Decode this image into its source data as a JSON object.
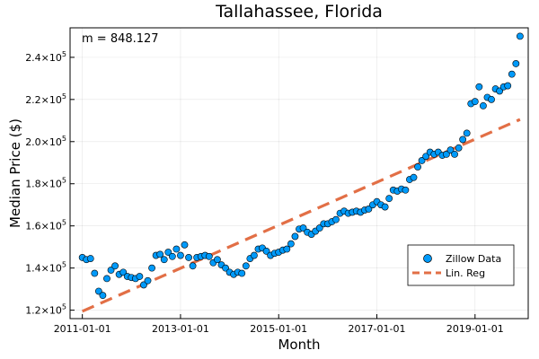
{
  "chart_data": {
    "type": "scatter",
    "title": "Tallahassee, Florida",
    "xlabel": "Month",
    "ylabel": "Median Price ($)",
    "annotation": "m = 848.127",
    "x_start": "2011-01-01",
    "x_tick_labels": [
      "2011-01-01",
      "2013-01-01",
      "2015-01-01",
      "2017-01-01",
      "2019-01-01"
    ],
    "x_tick_months": [
      0,
      24,
      48,
      72,
      96
    ],
    "xlim_months": [
      -3,
      109
    ],
    "ylim": [
      116000,
      254000
    ],
    "y_ticks": [
      120000,
      140000,
      160000,
      180000,
      200000,
      220000,
      240000
    ],
    "y_tick_mantissa": [
      "1.2",
      "1.4",
      "1.6",
      "1.8",
      "2.0",
      "2.2",
      "2.4"
    ],
    "y_tick_base": "×10",
    "y_tick_exp": "5",
    "grid": true,
    "legend": {
      "position": "bottom-right",
      "entries": [
        "Zillow Data",
        "Lin. Reg"
      ]
    },
    "series": [
      {
        "name": "Zillow Data",
        "kind": "scatter",
        "color": "#009AFA",
        "y": [
          145000,
          144000,
          144500,
          137500,
          129000,
          127000,
          135000,
          139000,
          141000,
          137000,
          138000,
          136000,
          135500,
          135000,
          136000,
          132000,
          134000,
          140000,
          146000,
          146500,
          144000,
          147500,
          145500,
          149000,
          146000,
          151000,
          145000,
          141000,
          145000,
          145500,
          146000,
          145500,
          142500,
          144000,
          141500,
          140000,
          138000,
          137000,
          138000,
          137500,
          141000,
          144500,
          146000,
          149000,
          149500,
          148000,
          146000,
          147000,
          147500,
          148500,
          149000,
          151500,
          155000,
          158500,
          159000,
          157000,
          156000,
          157500,
          159000,
          161000,
          161000,
          162000,
          163000,
          166000,
          167000,
          166000,
          166500,
          167000,
          166500,
          167500,
          168000,
          170000,
          171500,
          170000,
          169000,
          173000,
          177000,
          176500,
          177500,
          177000,
          182000,
          183000,
          188000,
          191000,
          193000,
          195000,
          194000,
          195000,
          193500,
          194000,
          196000,
          194000,
          197000,
          201000,
          204000,
          218000,
          219000,
          226000,
          217000,
          221000,
          220000,
          225000,
          224000,
          226000,
          226500,
          232000,
          237000,
          250000
        ]
      },
      {
        "name": "Lin. Reg",
        "kind": "line",
        "color": "#E26F46",
        "line": [
          [
            0,
            119500
          ],
          [
            107,
            210500
          ]
        ]
      }
    ]
  }
}
